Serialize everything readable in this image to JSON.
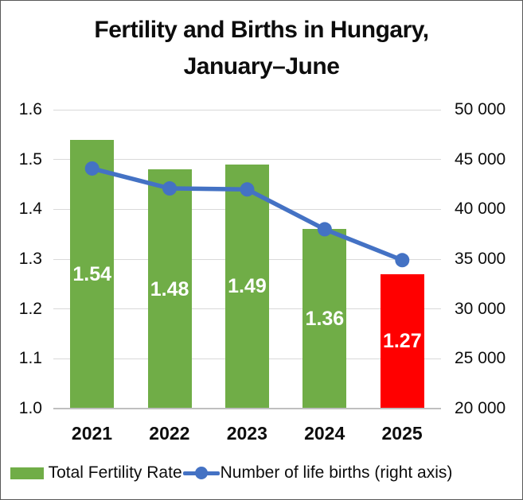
{
  "title": {
    "line1": "Fertility and Births in Hungary,",
    "line2": "January–June"
  },
  "chart_data": {
    "type": "combo",
    "categories": [
      "2021",
      "2022",
      "2023",
      "2024",
      "2025"
    ],
    "series": [
      {
        "name": "Total Fertility Rate",
        "type": "bar",
        "axis": "left",
        "values": [
          1.54,
          1.48,
          1.49,
          1.36,
          1.27
        ],
        "data_labels": [
          "1.54",
          "1.48",
          "1.49",
          "1.36",
          "1.27"
        ],
        "point_colors": [
          "#70AD47",
          "#70AD47",
          "#70AD47",
          "#70AD47",
          "#FF0000"
        ]
      },
      {
        "name": "Number of life births (right axis)",
        "type": "line",
        "axis": "right",
        "values": [
          44100,
          42100,
          42000,
          38000,
          34900
        ],
        "color": "#4472C4"
      }
    ],
    "left_axis": {
      "min": 1.0,
      "max": 1.6,
      "tick_labels": [
        "1.6",
        "1.5",
        "1.4",
        "1.3",
        "1.2",
        "1.1",
        "1.0"
      ]
    },
    "right_axis": {
      "min": 20000,
      "max": 50000,
      "tick_labels": [
        "50 000",
        "45 000",
        "40 000",
        "35 000",
        "30 000",
        "25 000",
        "20 000"
      ]
    },
    "grid": true,
    "legend_position": "bottom"
  },
  "legend": {
    "items": [
      {
        "label": "Total Fertility Rate",
        "swatch": "bar",
        "color": "#70AD47"
      },
      {
        "label": "Number of life births (right axis)",
        "swatch": "line",
        "color": "#4472C4"
      }
    ]
  },
  "colors": {
    "bar_green": "#70AD47",
    "bar_red": "#FF0000",
    "line_blue": "#4472C4",
    "gridline": "#D9D9D9",
    "axis_line": "#BFBFBF",
    "text": "#0D0D0D",
    "data_label": "#FFFFFF",
    "background": "#FFFFFF",
    "border": "#595959"
  }
}
